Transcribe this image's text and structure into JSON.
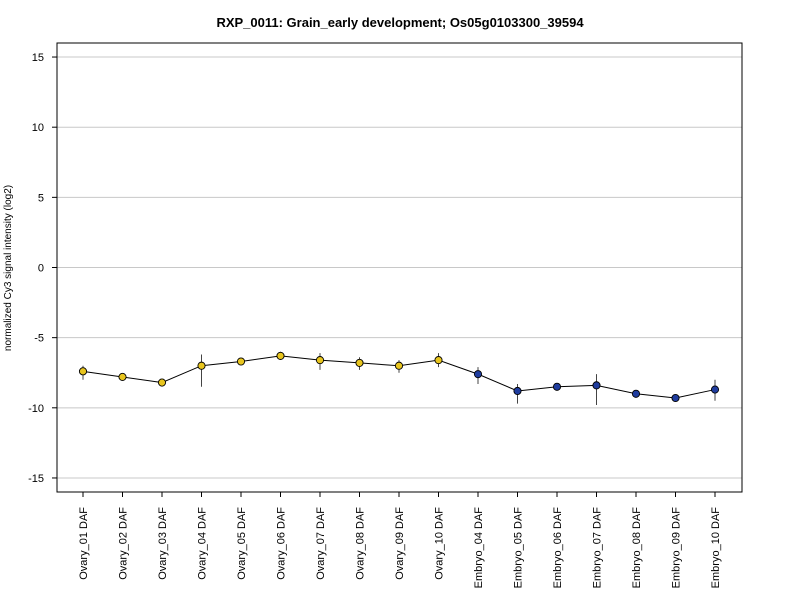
{
  "chart_data": {
    "type": "line",
    "title": "RXP_0011: Grain_early development; Os05g0103300_39594",
    "xlabel": "",
    "ylabel": "normalized Cy3 signal intensity (log2)",
    "ylim": [
      -16,
      16
    ],
    "yticks": [
      -15,
      -10,
      -5,
      0,
      5,
      10,
      15
    ],
    "grid": true,
    "categories": [
      "Ovary_01 DAF",
      "Ovary_02 DAF",
      "Ovary_03 DAF",
      "Ovary_04 DAF",
      "Ovary_05 DAF",
      "Ovary_06 DAF",
      "Ovary_07 DAF",
      "Ovary_08 DAF",
      "Ovary_09 DAF",
      "Ovary_10 DAF",
      "Embryo_04 DAF",
      "Embryo_05 DAF",
      "Embryo_06 DAF",
      "Embryo_07 DAF",
      "Embryo_08 DAF",
      "Embryo_09 DAF",
      "Embryo_10 DAF"
    ],
    "values": [
      -7.4,
      -7.8,
      -8.2,
      -7.0,
      -6.7,
      -6.3,
      -6.6,
      -6.8,
      -7.0,
      -6.6,
      -7.6,
      -8.8,
      -8.5,
      -8.4,
      -9.0,
      -9.3,
      -8.7
    ],
    "error_low": [
      -8.0,
      -8.0,
      -8.4,
      -8.5,
      -6.9,
      -6.5,
      -7.3,
      -7.3,
      -7.5,
      -7.1,
      -8.3,
      -9.7,
      -8.6,
      -9.8,
      -9.1,
      -9.4,
      -9.5
    ],
    "error_high": [
      -7.0,
      -7.6,
      -8.0,
      -6.2,
      -6.5,
      -6.0,
      -6.1,
      -6.4,
      -6.6,
      -6.1,
      -7.1,
      -8.3,
      -8.4,
      -7.6,
      -8.9,
      -9.2,
      -8.0
    ],
    "point_colors": [
      "#E8C51E",
      "#E8C51E",
      "#E8C51E",
      "#E8C51E",
      "#E8C51E",
      "#E8C51E",
      "#E8C51E",
      "#E8C51E",
      "#E8C51E",
      "#E8C51E",
      "#1F3C9E",
      "#1F3C9E",
      "#1F3C9E",
      "#1F3C9E",
      "#1F3C9E",
      "#1F3C9E",
      "#1F3C9E"
    ],
    "line_color": "#000000",
    "grid_color": "#c8c8c8"
  }
}
